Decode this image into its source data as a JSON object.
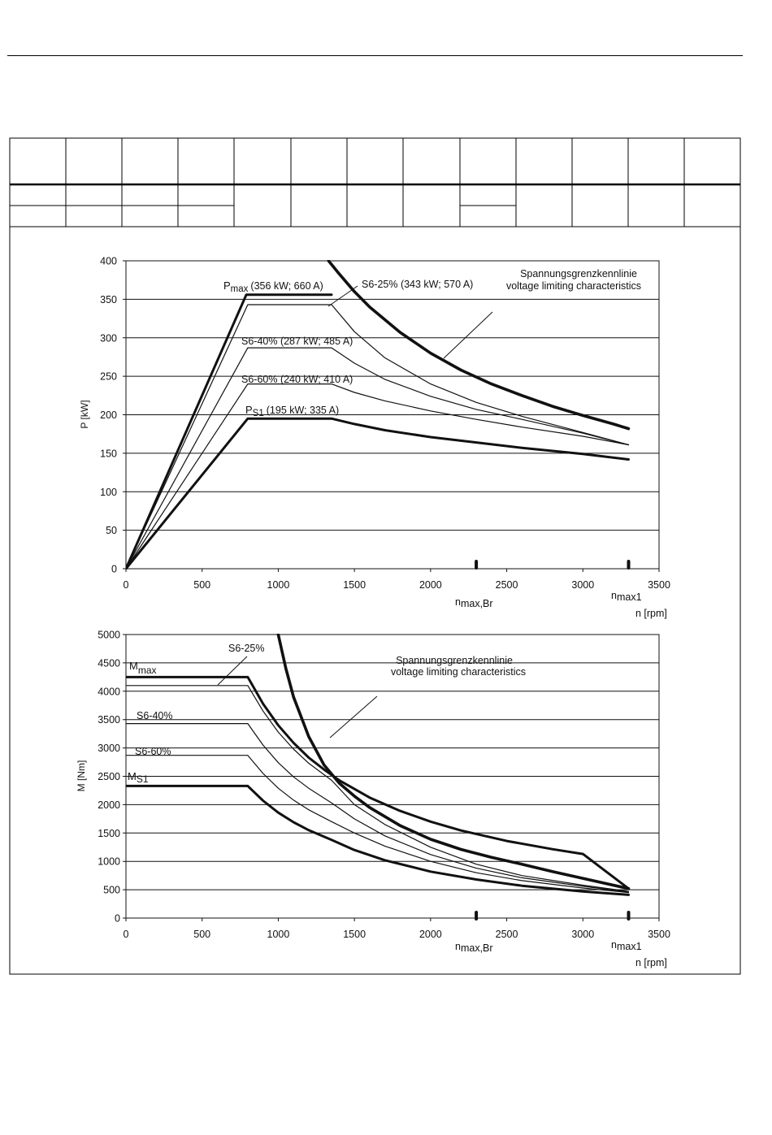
{
  "chart_data": [
    {
      "type": "line",
      "title": "",
      "xlabel": "n [rpm]",
      "ylabel": "P [kW]",
      "xlim": [
        0,
        3500
      ],
      "ylim": [
        0,
        400
      ],
      "xticks": [
        0,
        500,
        1000,
        1500,
        2000,
        2500,
        3000,
        3500
      ],
      "yticks": [
        0,
        50,
        100,
        150,
        200,
        250,
        300,
        350,
        400
      ],
      "grid": "horizontal",
      "legend": "none",
      "series": [
        {
          "name": "Pmax (356 kW; 660 A)",
          "x": [
            0,
            790,
            1350
          ],
          "y": [
            0,
            356,
            356
          ]
        },
        {
          "name": "S6-25% (343 kW; 570 A)",
          "x": [
            0,
            800,
            1350,
            1500,
            1700,
            2000,
            2300,
            2600,
            3000,
            3300
          ],
          "y": [
            0,
            343,
            343,
            308,
            274,
            240,
            216,
            198,
            177,
            161
          ]
        },
        {
          "name": "S6-40% (287 kW; 485 A)",
          "x": [
            0,
            800,
            1350,
            1500,
            1700,
            2000,
            2300,
            2600,
            3000,
            3300
          ],
          "y": [
            0,
            287,
            287,
            267,
            246,
            224,
            207,
            194,
            176,
            161
          ]
        },
        {
          "name": "S6-60% (240 kW; 410 A)",
          "x": [
            0,
            800,
            1350,
            1500,
            1700,
            2000,
            2300,
            2600,
            3000,
            3300
          ],
          "y": [
            0,
            240,
            240,
            229,
            218,
            205,
            194,
            184,
            172,
            161
          ]
        },
        {
          "name": "PS1 (195 kW; 335 A)",
          "x": [
            0,
            800,
            1350,
            1500,
            1700,
            2000,
            2300,
            2600,
            3000,
            3300
          ],
          "y": [
            0,
            195,
            195,
            188,
            180,
            171,
            164,
            157,
            149,
            142
          ]
        },
        {
          "name": "Spannungsgrenzkennlinie voltage limiting characteristics",
          "x": [
            1330,
            1400,
            1500,
            1600,
            1800,
            2000,
            2200,
            2400,
            2600,
            2800,
            3000,
            3200,
            3300
          ],
          "y": [
            400,
            383,
            360,
            340,
            307,
            280,
            258,
            240,
            225,
            211,
            199,
            188,
            182
          ]
        }
      ],
      "labels": {
        "pmax_main": "P",
        "pmax_sub": "max",
        "pmax_value": "(356 kW; 660 A)",
        "s6_25": "S6-25% (343 kW; 570 A)",
        "s6_40": "S6-40% (287 kW; 485 A)",
        "s6_60": "S6-60% (240 kW; 410 A)",
        "ps1_main": "P",
        "ps1_sub": "S1",
        "ps1_value": "(195 kW; 335 A)",
        "voltage_de": "Spannungsgrenzkennlinie",
        "voltage_en": "voltage limiting characteristics",
        "nmaxbr_main": "n",
        "nmaxbr_sub": "max,Br",
        "nmax1_main": "n",
        "nmax1_sub": "max1"
      },
      "markers": {
        "n_max_br": 2300,
        "n_max1": 3300
      }
    },
    {
      "type": "line",
      "title": "",
      "xlabel": "n [rpm]",
      "ylabel": "M [Nm]",
      "xlim": [
        0,
        3500
      ],
      "ylim": [
        0,
        5000
      ],
      "xticks": [
        0,
        500,
        1000,
        1500,
        2000,
        2500,
        3000,
        3500
      ],
      "yticks": [
        0,
        500,
        1000,
        1500,
        2000,
        2500,
        3000,
        3500,
        4000,
        4500,
        5000
      ],
      "grid": "horizontal",
      "legend": "none",
      "series": [
        {
          "name": "Mmax",
          "x": [
            0,
            800,
            900,
            1000,
            1100,
            1200,
            1300,
            1400,
            1600,
            1800,
            2000,
            2200,
            2500,
            2800,
            3000,
            3300
          ],
          "y": [
            4250,
            4250,
            3780,
            3400,
            3090,
            2830,
            2620,
            2430,
            2125,
            1890,
            1700,
            1545,
            1360,
            1215,
            1130,
            520
          ]
        },
        {
          "name": "S6-25%",
          "x": [
            0,
            800,
            900,
            1000,
            1100,
            1200,
            1350,
            1500,
            1700,
            2000,
            2300,
            2600,
            3000,
            3300
          ],
          "y": [
            4100,
            4100,
            3650,
            3280,
            2980,
            2730,
            2430,
            2000,
            1650,
            1250,
            950,
            750,
            580,
            470
          ]
        },
        {
          "name": "S6-40%",
          "x": [
            0,
            800,
            900,
            1000,
            1100,
            1200,
            1350,
            1500,
            1700,
            2000,
            2300,
            2600,
            3000,
            3300
          ],
          "y": [
            3430,
            3430,
            3050,
            2740,
            2490,
            2290,
            2030,
            1750,
            1450,
            1120,
            880,
            710,
            560,
            460
          ]
        },
        {
          "name": "S6-60%",
          "x": [
            0,
            800,
            900,
            1000,
            1100,
            1200,
            1350,
            1500,
            1700,
            2000,
            2300,
            2600,
            3000,
            3300
          ],
          "y": [
            2870,
            2870,
            2550,
            2290,
            2080,
            1910,
            1700,
            1500,
            1270,
            1000,
            800,
            660,
            530,
            450
          ]
        },
        {
          "name": "MS1",
          "x": [
            0,
            800,
            900,
            1000,
            1100,
            1200,
            1350,
            1500,
            1700,
            2000,
            2300,
            2600,
            3000,
            3300
          ],
          "y": [
            2330,
            2330,
            2070,
            1860,
            1690,
            1550,
            1380,
            1200,
            1020,
            820,
            680,
            570,
            470,
            410
          ]
        },
        {
          "name": "Spannungsgrenzkennlinie voltage limiting characteristics",
          "x": [
            1000,
            1050,
            1100,
            1200,
            1300,
            1400,
            1500,
            1600,
            1800,
            2000,
            2200,
            2400,
            2600,
            2800,
            3000,
            3300
          ],
          "y": [
            5000,
            4400,
            3900,
            3200,
            2700,
            2380,
            2150,
            1950,
            1630,
            1390,
            1210,
            1070,
            950,
            820,
            700,
            520
          ]
        }
      ],
      "labels": {
        "mmax_main": "M",
        "mmax_sub": "max",
        "s6_25": "S6-25%",
        "s6_40": "S6-40%",
        "s6_60": "S6-60%",
        "ms1_main": "M",
        "ms1_sub": "S1",
        "voltage_de": "Spannungsgrenzkennlinie",
        "voltage_en": "voltage limiting characteristics",
        "nmaxbr_main": "n",
        "nmaxbr_sub": "max,Br",
        "nmax1_main": "n",
        "nmax1_sub": "max1"
      },
      "markers": {
        "n_max_br": 2300,
        "n_max1": 3300
      }
    }
  ]
}
